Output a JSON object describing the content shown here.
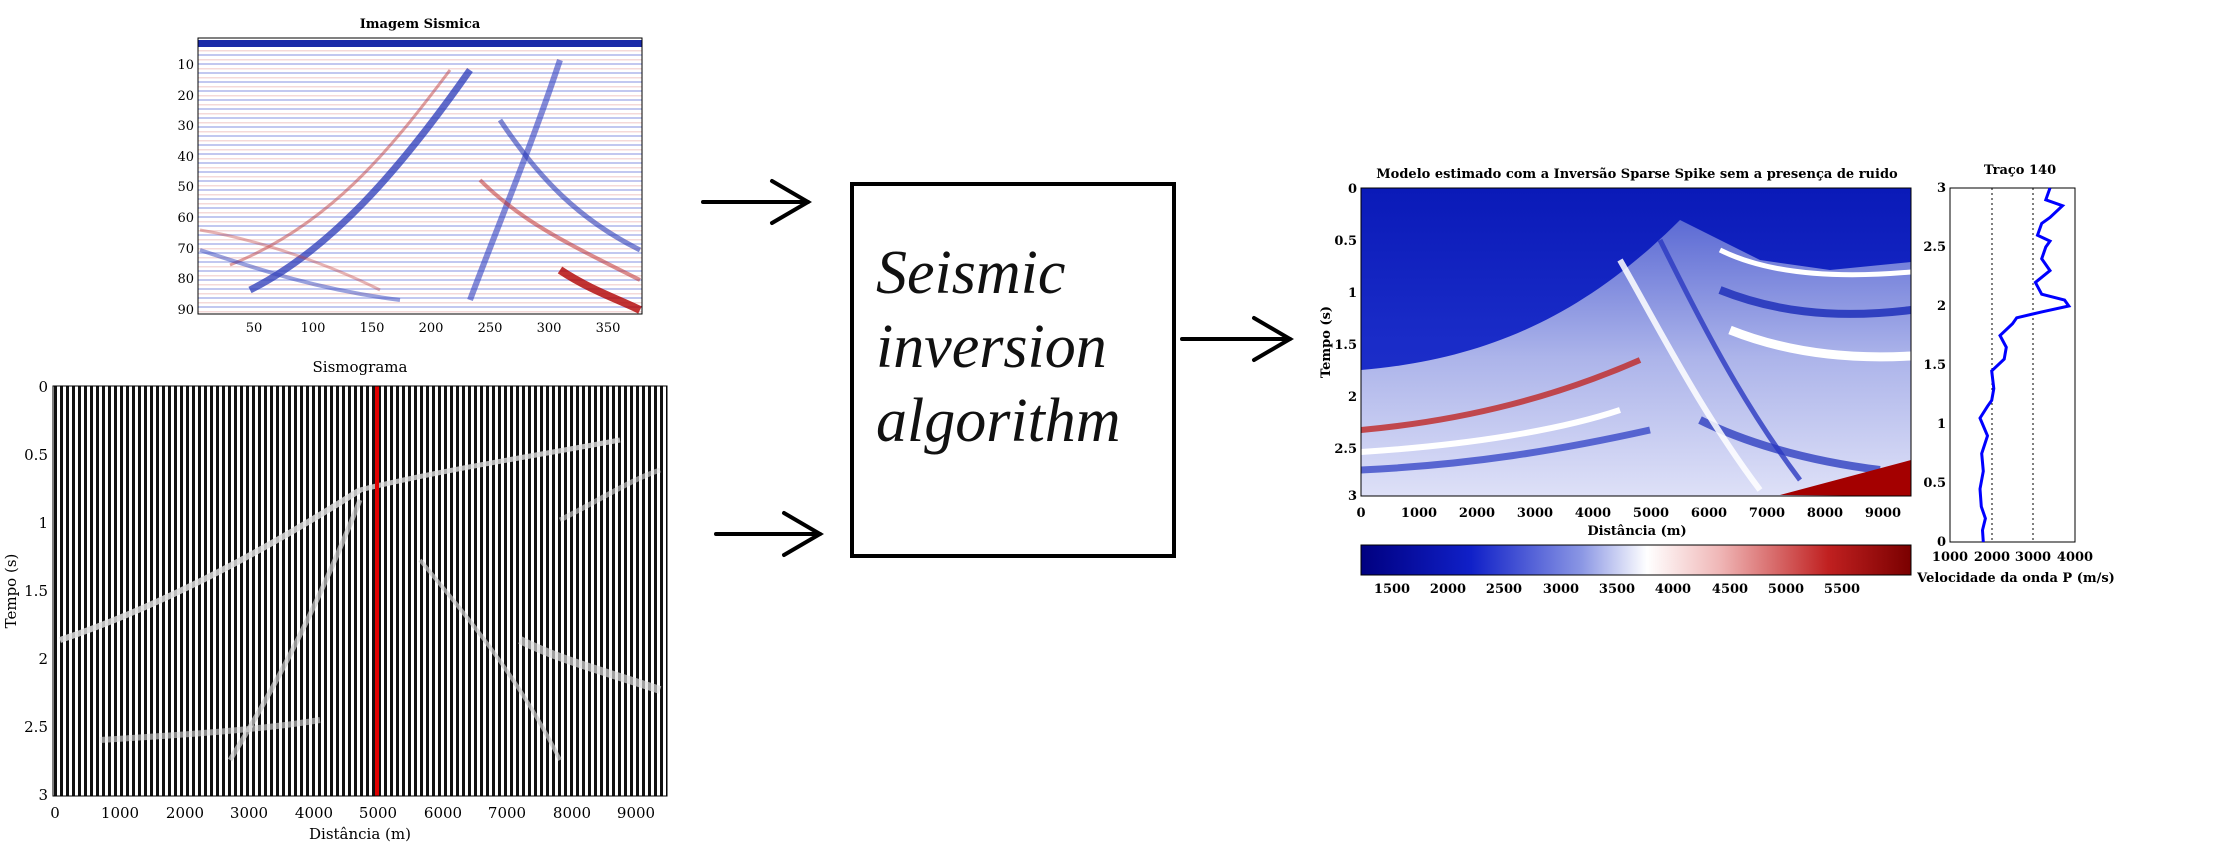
{
  "panel_seismic_image": {
    "title": "Imagem Sismica",
    "x_ticks": [
      "50",
      "100",
      "150",
      "200",
      "250",
      "300",
      "350"
    ],
    "y_ticks": [
      "10",
      "20",
      "30",
      "40",
      "50",
      "60",
      "70",
      "80",
      "90"
    ]
  },
  "panel_seismogram": {
    "title": "Sismograma",
    "xlabel": "Distância (m)",
    "ylabel": "Tempo (s)",
    "x_ticks": [
      "0",
      "1000",
      "2000",
      "3000",
      "4000",
      "5000",
      "6000",
      "7000",
      "8000",
      "9000"
    ],
    "y_ticks": [
      "0",
      "0.5",
      "1",
      "1.5",
      "2",
      "2.5",
      "3"
    ],
    "highlight_trace_color": "#e00000"
  },
  "algorithm_box": {
    "lines": [
      "Seismic",
      "inversion",
      "algorithm"
    ]
  },
  "panel_model": {
    "title": "Modelo estimado com a Inversão Sparse Spike sem a presença de ruido",
    "xlabel": "Distância (m)",
    "ylabel": "Tempo (s)",
    "x_ticks": [
      "0",
      "1000",
      "2000",
      "3000",
      "4000",
      "5000",
      "6000",
      "7000",
      "8000",
      "9000"
    ],
    "y_ticks": [
      "0",
      "0.5",
      "1",
      "1.5",
      "2",
      "2.5",
      "3"
    ],
    "colorbar_ticks": [
      "1500",
      "2000",
      "2500",
      "3000",
      "3500",
      "4000",
      "4500",
      "5000",
      "5500"
    ],
    "colormap": [
      "#000080",
      "#1020c8",
      "#5a6ad8",
      "#ffffff",
      "#f0b0b0",
      "#c02020",
      "#800000"
    ]
  },
  "panel_trace": {
    "title": "Traço 140",
    "xlabel": "Velocidade da onda P (m/s)",
    "x_ticks": [
      "1000",
      "2000",
      "3000",
      "4000"
    ],
    "y_ticks": [
      "0",
      "0.5",
      "1",
      "1.5",
      "2",
      "2.5",
      "3"
    ],
    "line_color": "#0000ff"
  },
  "chart_data": {
    "type": "line",
    "title": "Traço 140",
    "xlabel": "Velocidade da onda P (m/s)",
    "ylabel": "",
    "xlim": [
      1000,
      4000
    ],
    "ylim": [
      0,
      3
    ],
    "series": [
      {
        "x": [
          1800,
          1780,
          1850,
          1750,
          1720,
          1800,
          1760,
          1900,
          1780,
          1720,
          1900,
          2000,
          2050,
          2000,
          2300,
          2350,
          2200,
          2500,
          2600,
          3200,
          3850,
          3750,
          3200,
          3050,
          3400,
          3200,
          3300,
          3400,
          3100,
          3200,
          3400,
          3700,
          3300,
          3400
        ],
        "y": [
          0,
          0.1,
          0.2,
          0.3,
          0.45,
          0.6,
          0.75,
          0.9,
          1.0,
          1.05,
          1.15,
          1.2,
          1.3,
          1.45,
          1.55,
          1.65,
          1.75,
          1.85,
          1.9,
          1.95,
          2.0,
          2.05,
          2.1,
          2.2,
          2.3,
          2.4,
          2.5,
          2.55,
          2.6,
          2.7,
          2.75,
          2.85,
          2.9,
          3.0
        ]
      }
    ]
  }
}
